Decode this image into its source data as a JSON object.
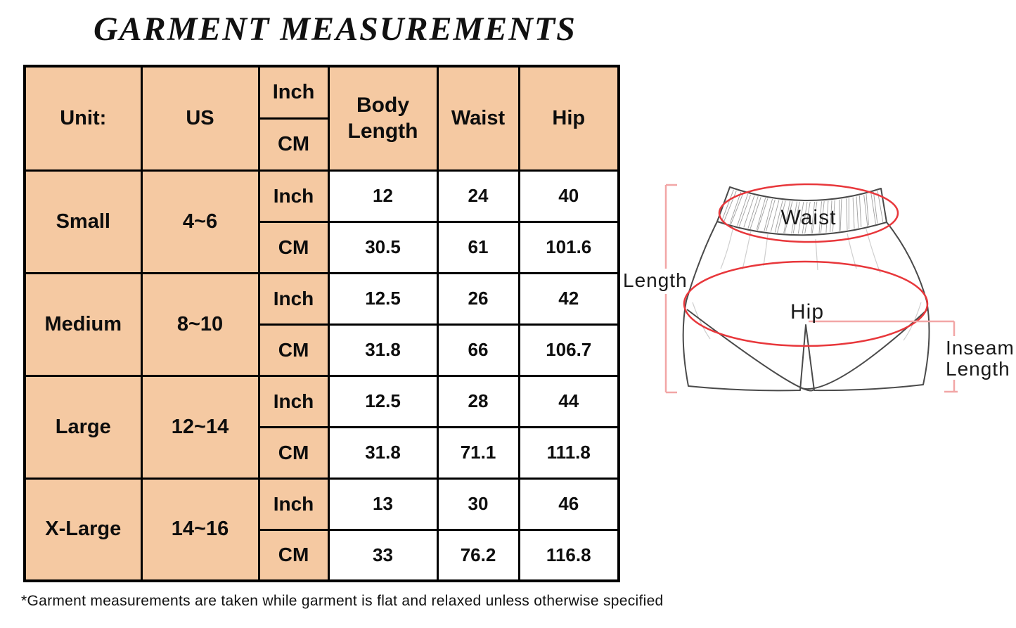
{
  "title": "GARMENT MEASUREMENTS",
  "footnote": "*Garment measurements are taken while garment is flat and relaxed unless otherwise specified",
  "colors": {
    "peach": "#f5c9a2",
    "red": "#e8373b",
    "pink": "#f2a6a6",
    "line_dark": "#4a4a4a"
  },
  "table": {
    "header": {
      "unit": "Unit:",
      "us": "US",
      "body_length": "Body Length",
      "waist": "Waist",
      "hip": "Hip"
    },
    "labels": {
      "inch": "Inch",
      "cm": "CM"
    },
    "rows": [
      {
        "size": "Small",
        "us": "4~6",
        "inch": [
          "12",
          "24",
          "40"
        ],
        "cm": [
          "30.5",
          "61",
          "101.6"
        ]
      },
      {
        "size": "Medium",
        "us": "8~10",
        "inch": [
          "12.5",
          "26",
          "42"
        ],
        "cm": [
          "31.8",
          "66",
          "106.7"
        ]
      },
      {
        "size": "Large",
        "us": "12~14",
        "inch": [
          "12.5",
          "28",
          "44"
        ],
        "cm": [
          "31.8",
          "71.1",
          "111.8"
        ]
      },
      {
        "size": "X-Large",
        "us": "14~16",
        "inch": [
          "13",
          "30",
          "46"
        ],
        "cm": [
          "33",
          "76.2",
          "116.8"
        ]
      }
    ]
  },
  "diagram": {
    "labels": {
      "waist": "Waist",
      "hip": "Hip",
      "length": "Length",
      "inseam_line1": "Inseam",
      "inseam_line2": "Length"
    }
  },
  "chart_data": {
    "type": "table",
    "title": "GARMENT MEASUREMENTS",
    "columns": [
      "Unit:",
      "US",
      "Inch/CM",
      "Body Length",
      "Waist",
      "Hip"
    ],
    "rows": [
      [
        "Small",
        "4~6",
        "Inch",
        12,
        24,
        40
      ],
      [
        "Small",
        "4~6",
        "CM",
        30.5,
        61,
        101.6
      ],
      [
        "Medium",
        "8~10",
        "Inch",
        12.5,
        26,
        42
      ],
      [
        "Medium",
        "8~10",
        "CM",
        31.8,
        66,
        106.7
      ],
      [
        "Large",
        "12~14",
        "Inch",
        12.5,
        28,
        44
      ],
      [
        "Large",
        "12~14",
        "CM",
        31.8,
        71.1,
        111.8
      ],
      [
        "X-Large",
        "14~16",
        "Inch",
        13,
        30,
        46
      ],
      [
        "X-Large",
        "14~16",
        "CM",
        33,
        76.2,
        116.8
      ]
    ],
    "footnote": "*Garment measurements are taken while garment is flat and relaxed unless otherwise specified"
  }
}
